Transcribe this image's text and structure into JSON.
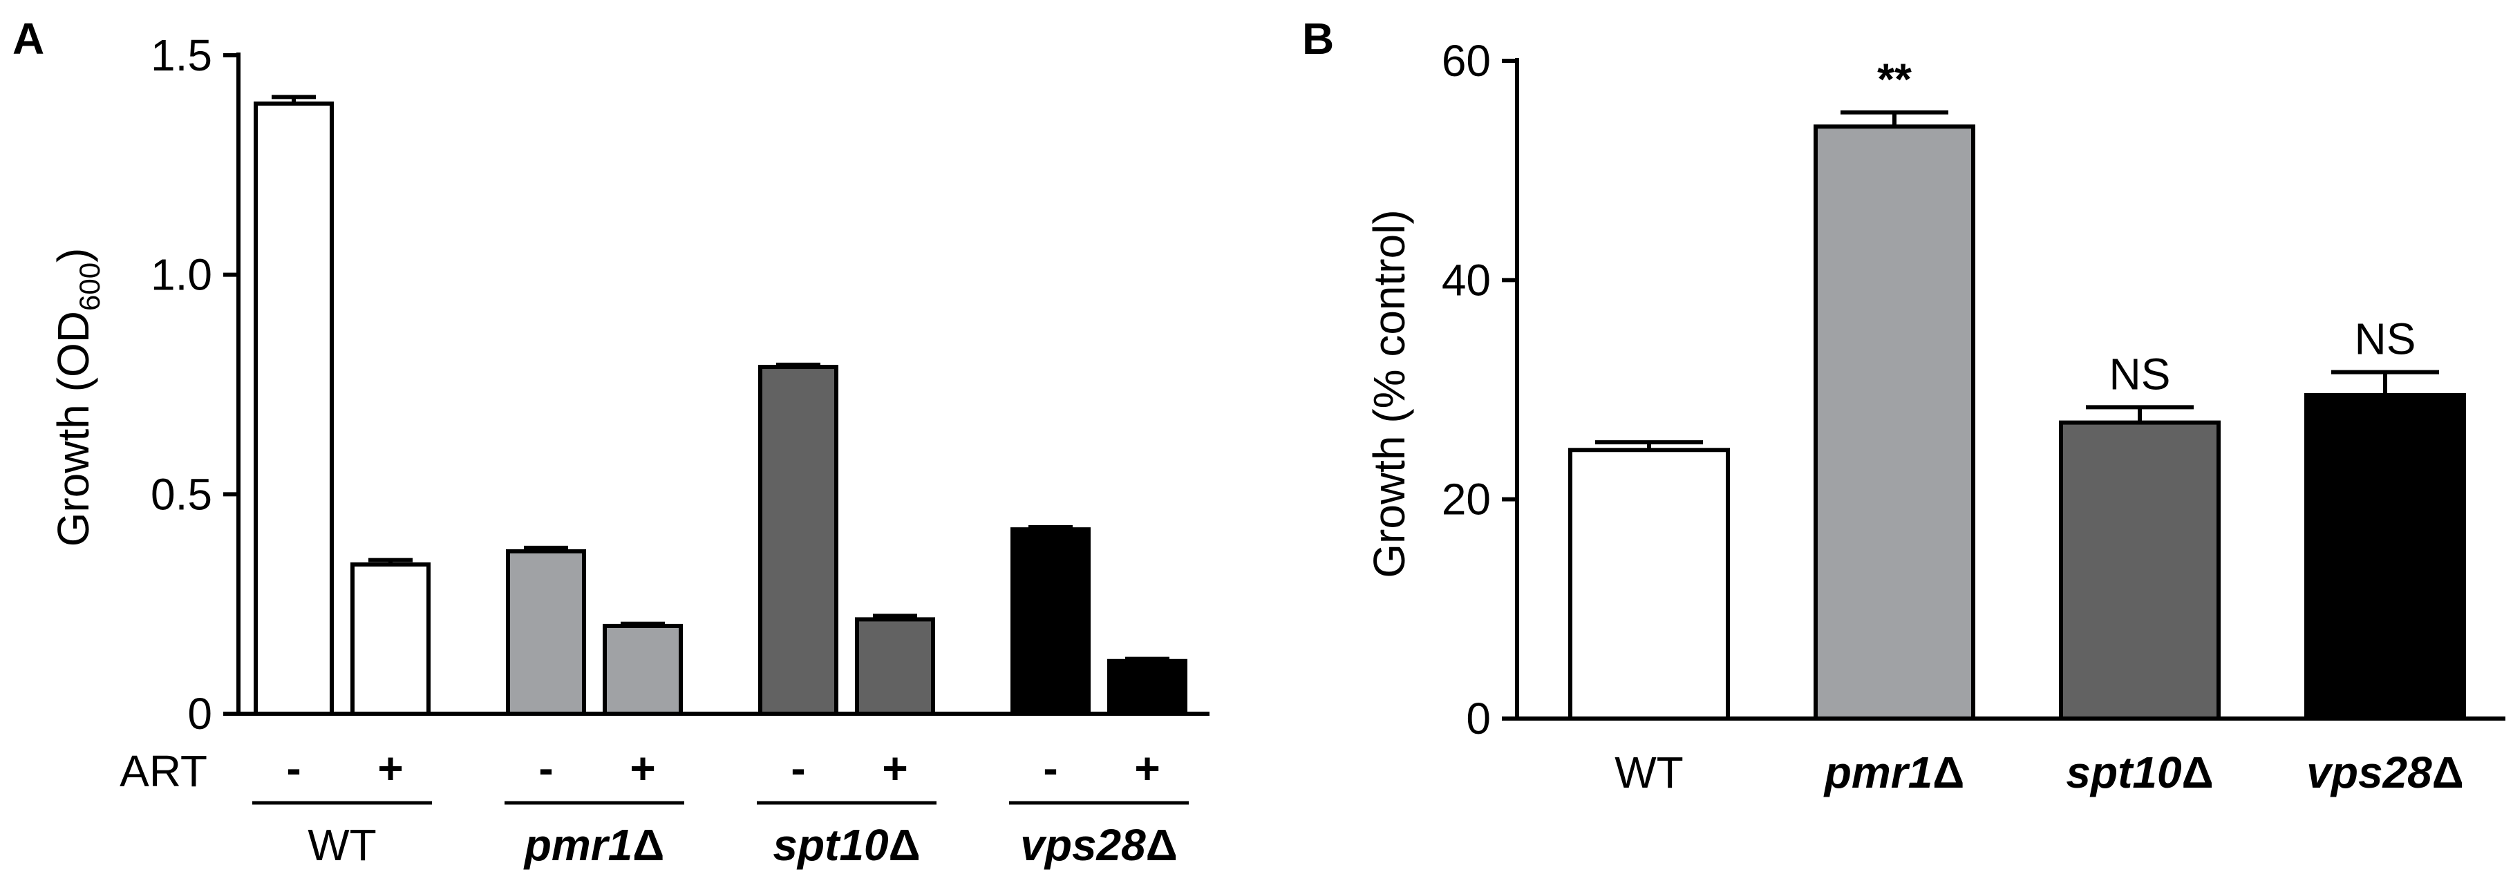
{
  "chart_data": [
    {
      "panel": "A",
      "type": "bar",
      "title": "",
      "ylabel_main": "Growth (OD",
      "ylabel_sub": "600",
      "ylabel_end": ")",
      "ylim": [
        0,
        1.5
      ],
      "yticks": [
        "0",
        "0.5",
        "1.0",
        "1.5"
      ],
      "treatment_label": "ART",
      "treatment_signs": [
        "-",
        "+",
        "-",
        "+",
        "-",
        "+",
        "-",
        "+"
      ],
      "groups": [
        {
          "name": "WT",
          "italic": false,
          "color": "#ffffff"
        },
        {
          "name_main": "pmr1",
          "name_suffix": "Δ",
          "italic": true,
          "color": "#a0a2a5"
        },
        {
          "name_main": "spt10",
          "name_suffix": "Δ",
          "italic": true,
          "color": "#626262"
        },
        {
          "name_main": "vps28",
          "name_suffix": "Δ",
          "italic": true,
          "color": "#000000"
        }
      ],
      "values": [
        1.39,
        0.34,
        0.37,
        0.2,
        0.79,
        0.215,
        0.42,
        0.12
      ],
      "errors": [
        0.015,
        0.01,
        0.008,
        0.005,
        0.005,
        0.008,
        0.005,
        0.005
      ]
    },
    {
      "panel": "B",
      "type": "bar",
      "title": "",
      "ylabel": "Growth (% control)",
      "ylim": [
        0,
        60
      ],
      "yticks": [
        "0",
        "20",
        "40",
        "60"
      ],
      "categories": [
        "WT",
        "pmr1",
        "spt10",
        "vps28"
      ],
      "category_suffix": [
        "",
        "Δ",
        "Δ",
        "Δ"
      ],
      "category_italic": [
        false,
        true,
        true,
        true
      ],
      "colors": [
        "#ffffff",
        "#a0a2a5",
        "#626262",
        "#000000"
      ],
      "values": [
        24.5,
        54.0,
        27.0,
        29.5
      ],
      "errors": [
        0.7,
        1.3,
        1.4,
        2.1
      ],
      "annotations": [
        "",
        "**",
        "NS",
        "NS"
      ]
    }
  ]
}
